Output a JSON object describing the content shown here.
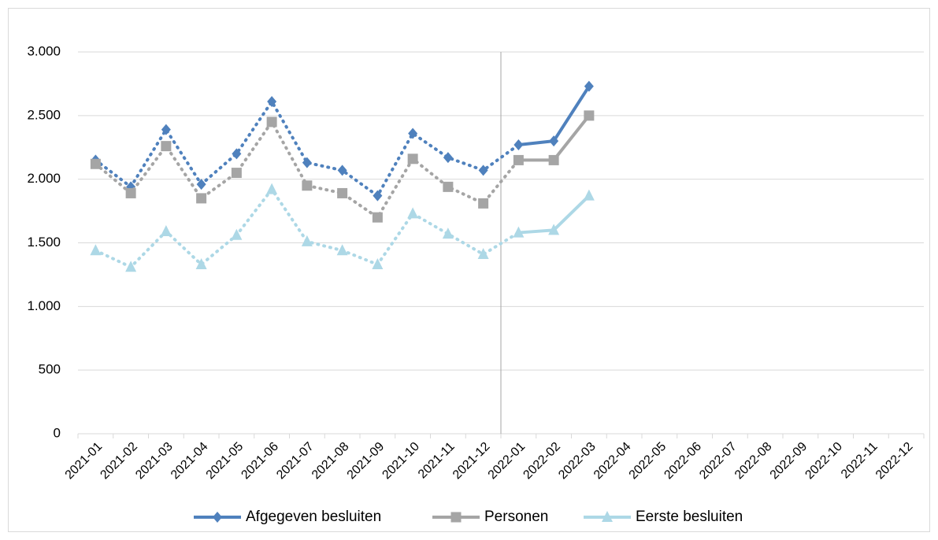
{
  "chart_data": {
    "type": "line",
    "categories": [
      "2021-01",
      "2021-02",
      "2021-03",
      "2021-04",
      "2021-05",
      "2021-06",
      "2021-07",
      "2021-08",
      "2021-09",
      "2021-10",
      "2021-11",
      "2021-12",
      "2022-01",
      "2022-02",
      "2022-03",
      "2022-04",
      "2022-05",
      "2022-06",
      "2022-07",
      "2022-08",
      "2022-09",
      "2022-10",
      "2022-11",
      "2022-12"
    ],
    "series": [
      {
        "name": "Afgegeven besluiten",
        "color": "#4f81bd",
        "marker": "diamond",
        "values": [
          2150,
          1940,
          2390,
          1960,
          2200,
          2610,
          2130,
          2070,
          1870,
          2360,
          2170,
          2070,
          2270,
          2300,
          2730,
          null,
          null,
          null,
          null,
          null,
          null,
          null,
          null,
          null
        ]
      },
      {
        "name": "Personen",
        "color": "#a5a5a5",
        "marker": "square",
        "values": [
          2120,
          1890,
          2260,
          1850,
          2050,
          2450,
          1950,
          1890,
          1700,
          2160,
          1940,
          1810,
          2150,
          2150,
          2500,
          null,
          null,
          null,
          null,
          null,
          null,
          null,
          null,
          null
        ]
      },
      {
        "name": "Eerste besluiten",
        "color": "#add8e6",
        "marker": "triangle",
        "values": [
          1440,
          1310,
          1590,
          1330,
          1560,
          1920,
          1510,
          1440,
          1330,
          1730,
          1570,
          1410,
          1580,
          1600,
          1870,
          null,
          null,
          null,
          null,
          null,
          null,
          null,
          null,
          null
        ]
      }
    ],
    "dotted_through": "2021-12",
    "ylim": [
      0,
      3000
    ],
    "yticks": [
      0,
      500,
      {
        "value": 1000,
        "label": "1.000"
      },
      {
        "value": 1500,
        "label": "1.500"
      },
      {
        "value": 2000,
        "label": "2.000"
      },
      {
        "value": 2500,
        "label": "2.500"
      },
      {
        "value": 3000,
        "label": "3.000"
      }
    ],
    "grid": true,
    "legend": "bottom"
  }
}
